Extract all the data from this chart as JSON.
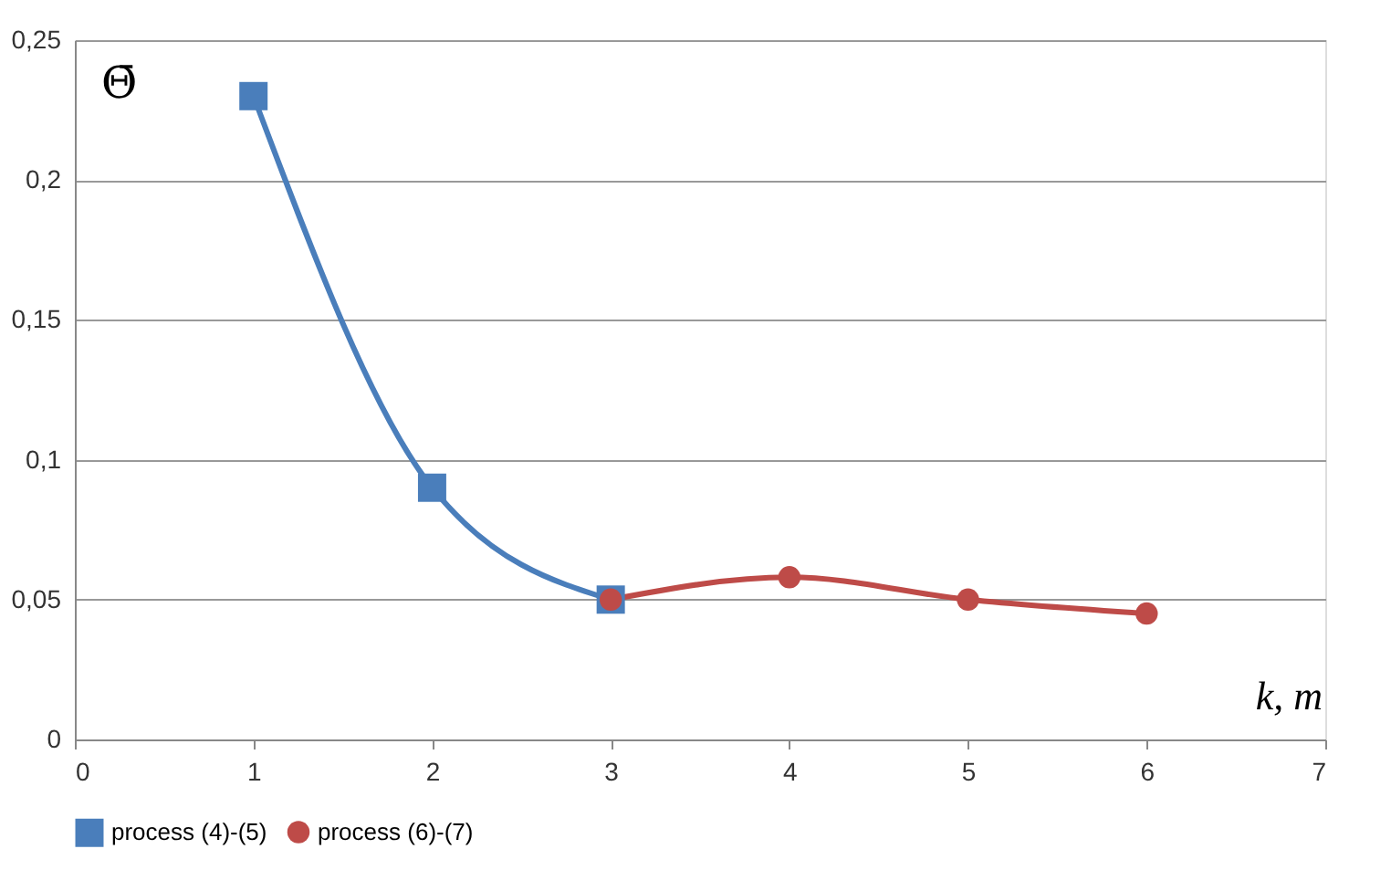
{
  "chart_data": {
    "type": "line",
    "xlabel": "k, m",
    "ylabel": "Θ̄",
    "xlim": [
      0,
      7
    ],
    "xticks": [
      0,
      1,
      2,
      3,
      4,
      5,
      6,
      7
    ],
    "ylim": [
      0,
      0.25
    ],
    "yticks": [
      0,
      {
        "value": 0.05,
        "label": "0,05"
      },
      {
        "value": 0.1,
        "label": "0,1"
      },
      {
        "value": 0.15,
        "label": "0,15"
      },
      {
        "value": 0.2,
        "label": "0,2"
      },
      {
        "value": 0.25,
        "label": "0,25"
      }
    ],
    "grid": "y",
    "legend": "bottom",
    "line_style": "solid",
    "series": [
      {
        "name": "process (4)-(5)",
        "color": "#4a7ebb",
        "marker": "square",
        "x": [
          1,
          2,
          3
        ],
        "values": [
          0.23,
          0.09,
          0.05
        ]
      },
      {
        "name": "process (6)-(7)",
        "color": "#be4b48",
        "marker": "circle",
        "x": [
          3,
          4,
          5,
          6
        ],
        "values": [
          0.05,
          0.058,
          0.05,
          0.045
        ]
      }
    ]
  }
}
